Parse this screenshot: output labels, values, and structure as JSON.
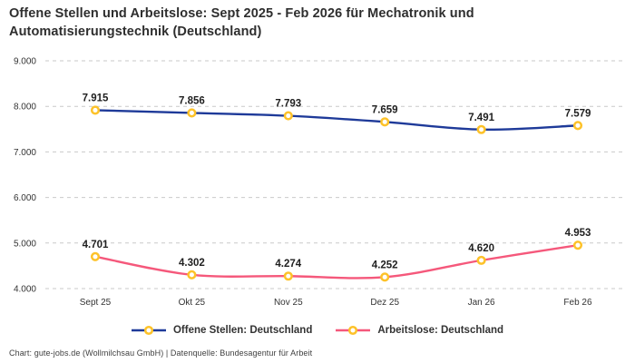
{
  "title": "Offene Stellen und Arbeitslose: Sept 2025 - Feb 2026 für Mechatronik und Automatisierungstechnik (Deutschland)",
  "footer": "Chart: gute-jobs.de (Wollmilchsau GmbH) | Datenquelle: Bundesagentur für Arbeit",
  "colors": {
    "open_positions_line": "#1e3a99",
    "unemployed_line": "#f5587b",
    "marker_stroke": "#fdc229",
    "marker_fill": "#ffffff",
    "gridline": "#c9c9c9",
    "title_text": "#2e2e2e",
    "axis_text": "#333333",
    "data_label_text": "#1f1f1f",
    "footer_text": "#3f3f3f"
  },
  "chart_data": {
    "type": "line",
    "title": "Offene Stellen und Arbeitslose: Sept 2025 - Feb 2026 für Mechatronik und Automatisierungstechnik (Deutschland)",
    "categories": [
      "Sept 25",
      "Okt 25",
      "Nov 25",
      "Dez 25",
      "Jan 26",
      "Feb 26"
    ],
    "series": [
      {
        "name": "Offene Stellen: Deutschland",
        "color": "#1e3a99",
        "values": [
          7915,
          7856,
          7793,
          7659,
          7491,
          7579
        ],
        "data_labels": [
          "7.915",
          "7.856",
          "7.793",
          "7.659",
          "7.491",
          "7.579"
        ]
      },
      {
        "name": "Arbeitslose: Deutschland",
        "color": "#f5587b",
        "values": [
          4701,
          4302,
          4274,
          4252,
          4620,
          4953
        ],
        "data_labels": [
          "4.701",
          "4.302",
          "4.274",
          "4.252",
          "4.620",
          "4.953"
        ]
      }
    ],
    "y_ticks": [
      {
        "value": 4000,
        "label": "4.000"
      },
      {
        "value": 5000,
        "label": "5.000"
      },
      {
        "value": 6000,
        "label": "6.000"
      },
      {
        "value": 7000,
        "label": "7.000"
      },
      {
        "value": 8000,
        "label": "8.000"
      },
      {
        "value": 9000,
        "label": "9.000"
      }
    ],
    "ylim": [
      4000,
      9000
    ],
    "xlabel": "",
    "ylabel": "",
    "grid": "dashed-horizontal",
    "legend_position": "bottom",
    "marker": {
      "shape": "circle",
      "fill": "#ffffff",
      "stroke": "#fdc229"
    }
  }
}
